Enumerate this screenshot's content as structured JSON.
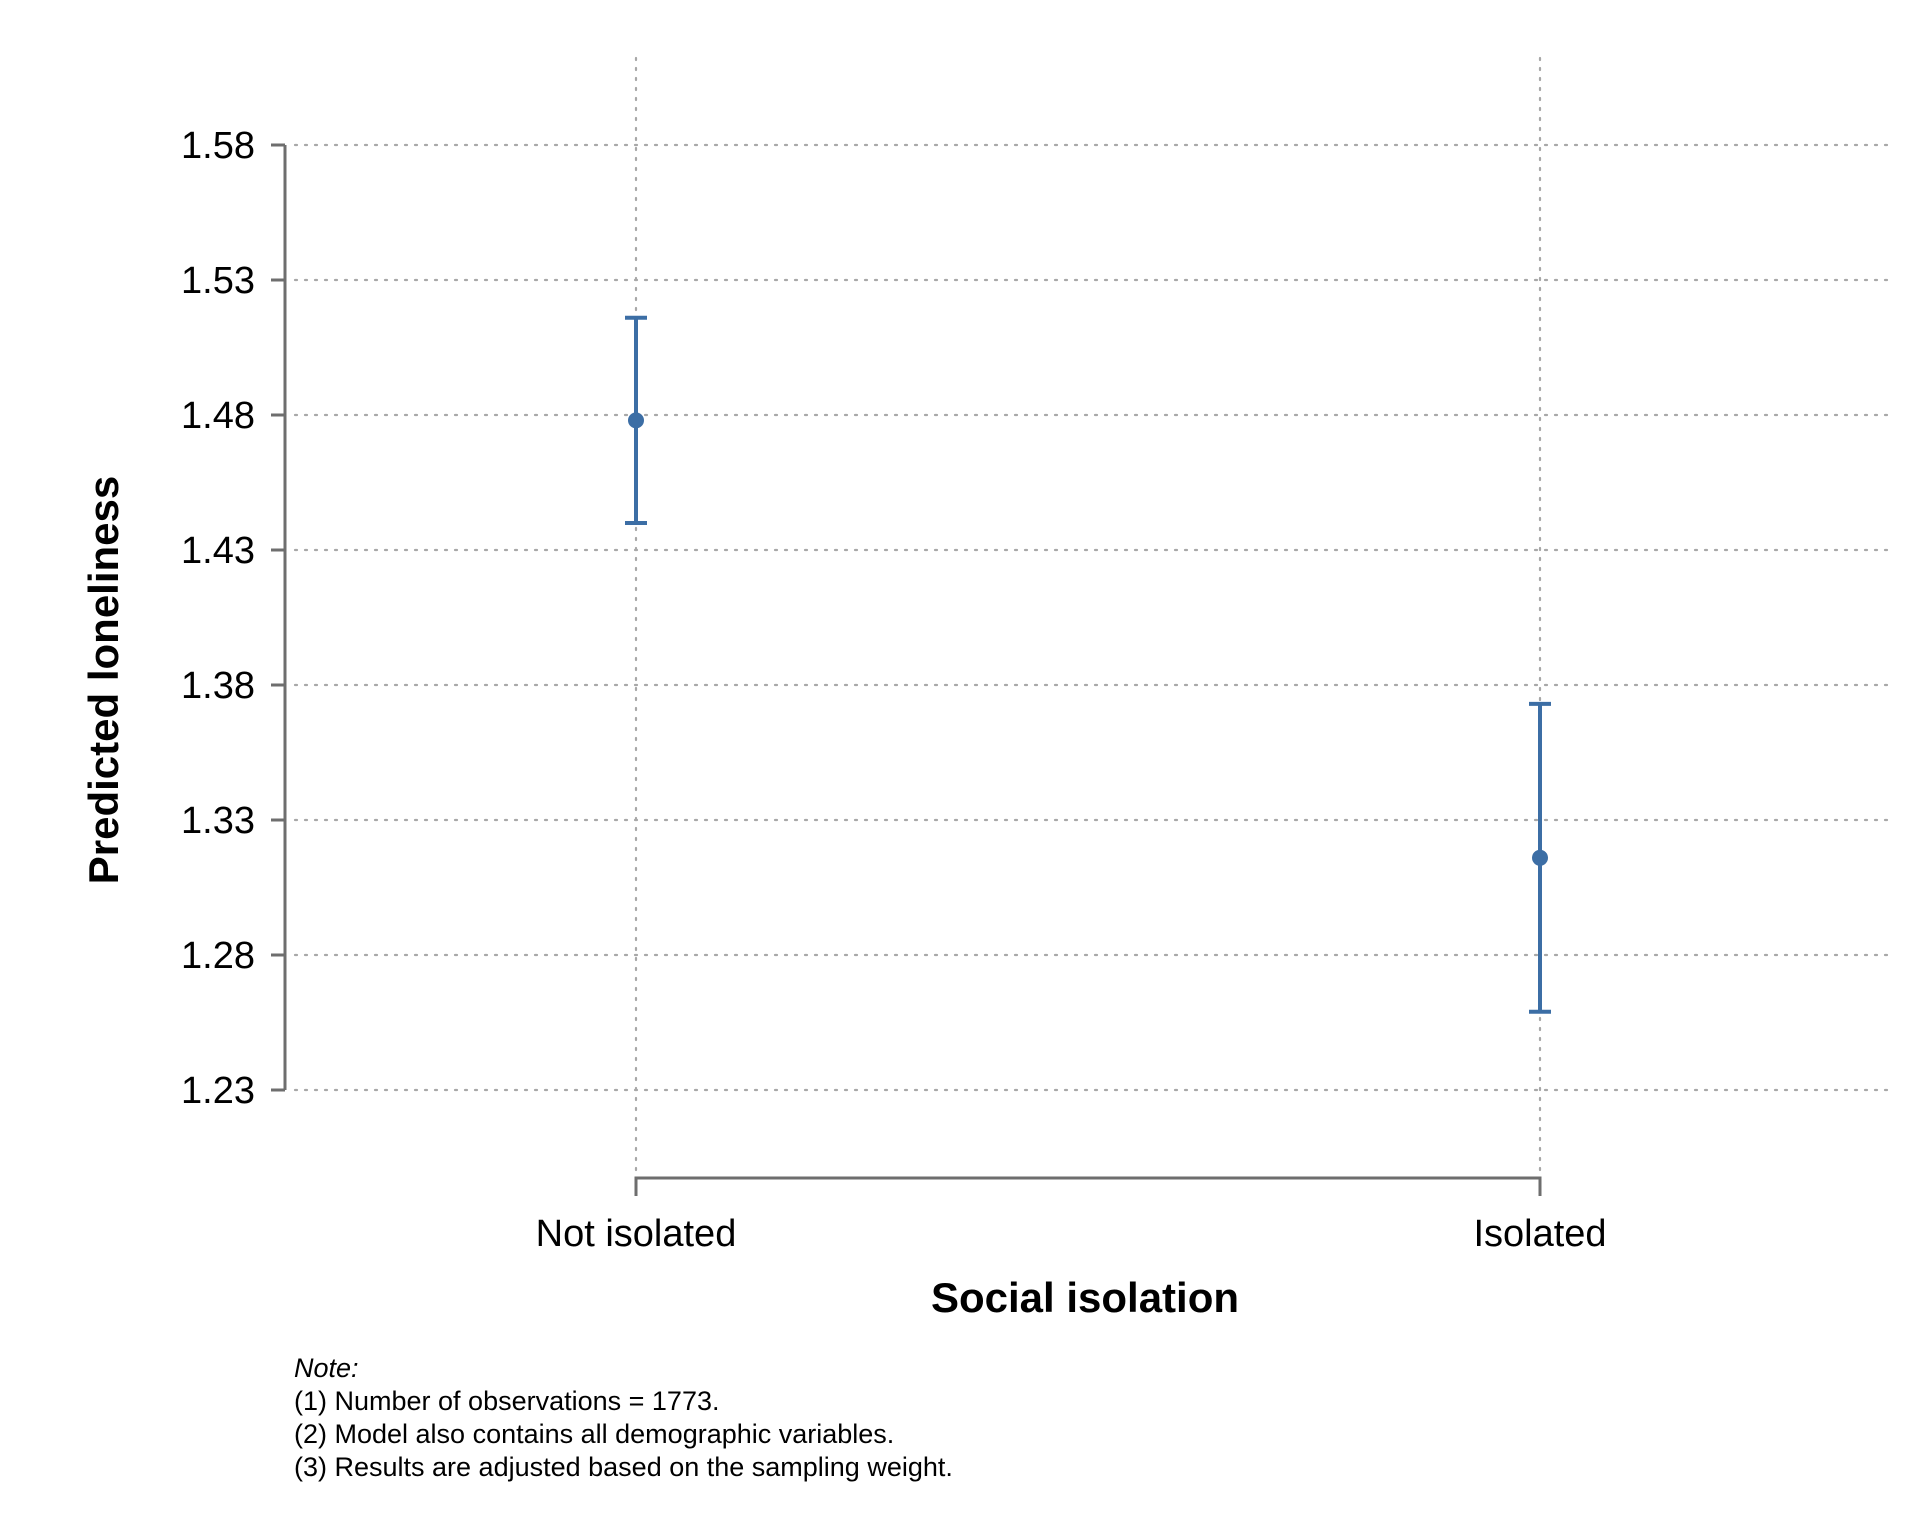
{
  "chart_data": {
    "type": "scatter",
    "subtype": "point-estimate-with-error-bars",
    "title": "",
    "xlabel": "Social isolation",
    "ylabel": "Predicted loneliness",
    "categories": [
      "Not isolated",
      "Isolated"
    ],
    "series": [
      {
        "estimate": [
          1.478,
          1.316
        ],
        "ci_lower": [
          1.44,
          1.259
        ],
        "ci_upper": [
          1.516,
          1.373
        ]
      }
    ],
    "ylim": [
      1.23,
      1.58
    ],
    "yticks": [
      1.58,
      1.53,
      1.48,
      1.43,
      1.38,
      1.33,
      1.28,
      1.23
    ],
    "ytick_labels": [
      "1.58",
      "1.53",
      "1.48",
      "1.43",
      "1.38",
      "1.33",
      "1.28",
      "1.23"
    ],
    "grid": true,
    "grid_style": "dotted",
    "legend": "none",
    "colors": {
      "series": "#3c6ea5",
      "axis": "#6e6e6e",
      "grid": "#a8a8a8"
    }
  },
  "note": {
    "heading": "Note:",
    "lines": [
      "(1) Number of observations = 1773.",
      "(2) Model also contains all demographic variables.",
      "(3) Results are adjusted based on the sampling weight."
    ]
  }
}
